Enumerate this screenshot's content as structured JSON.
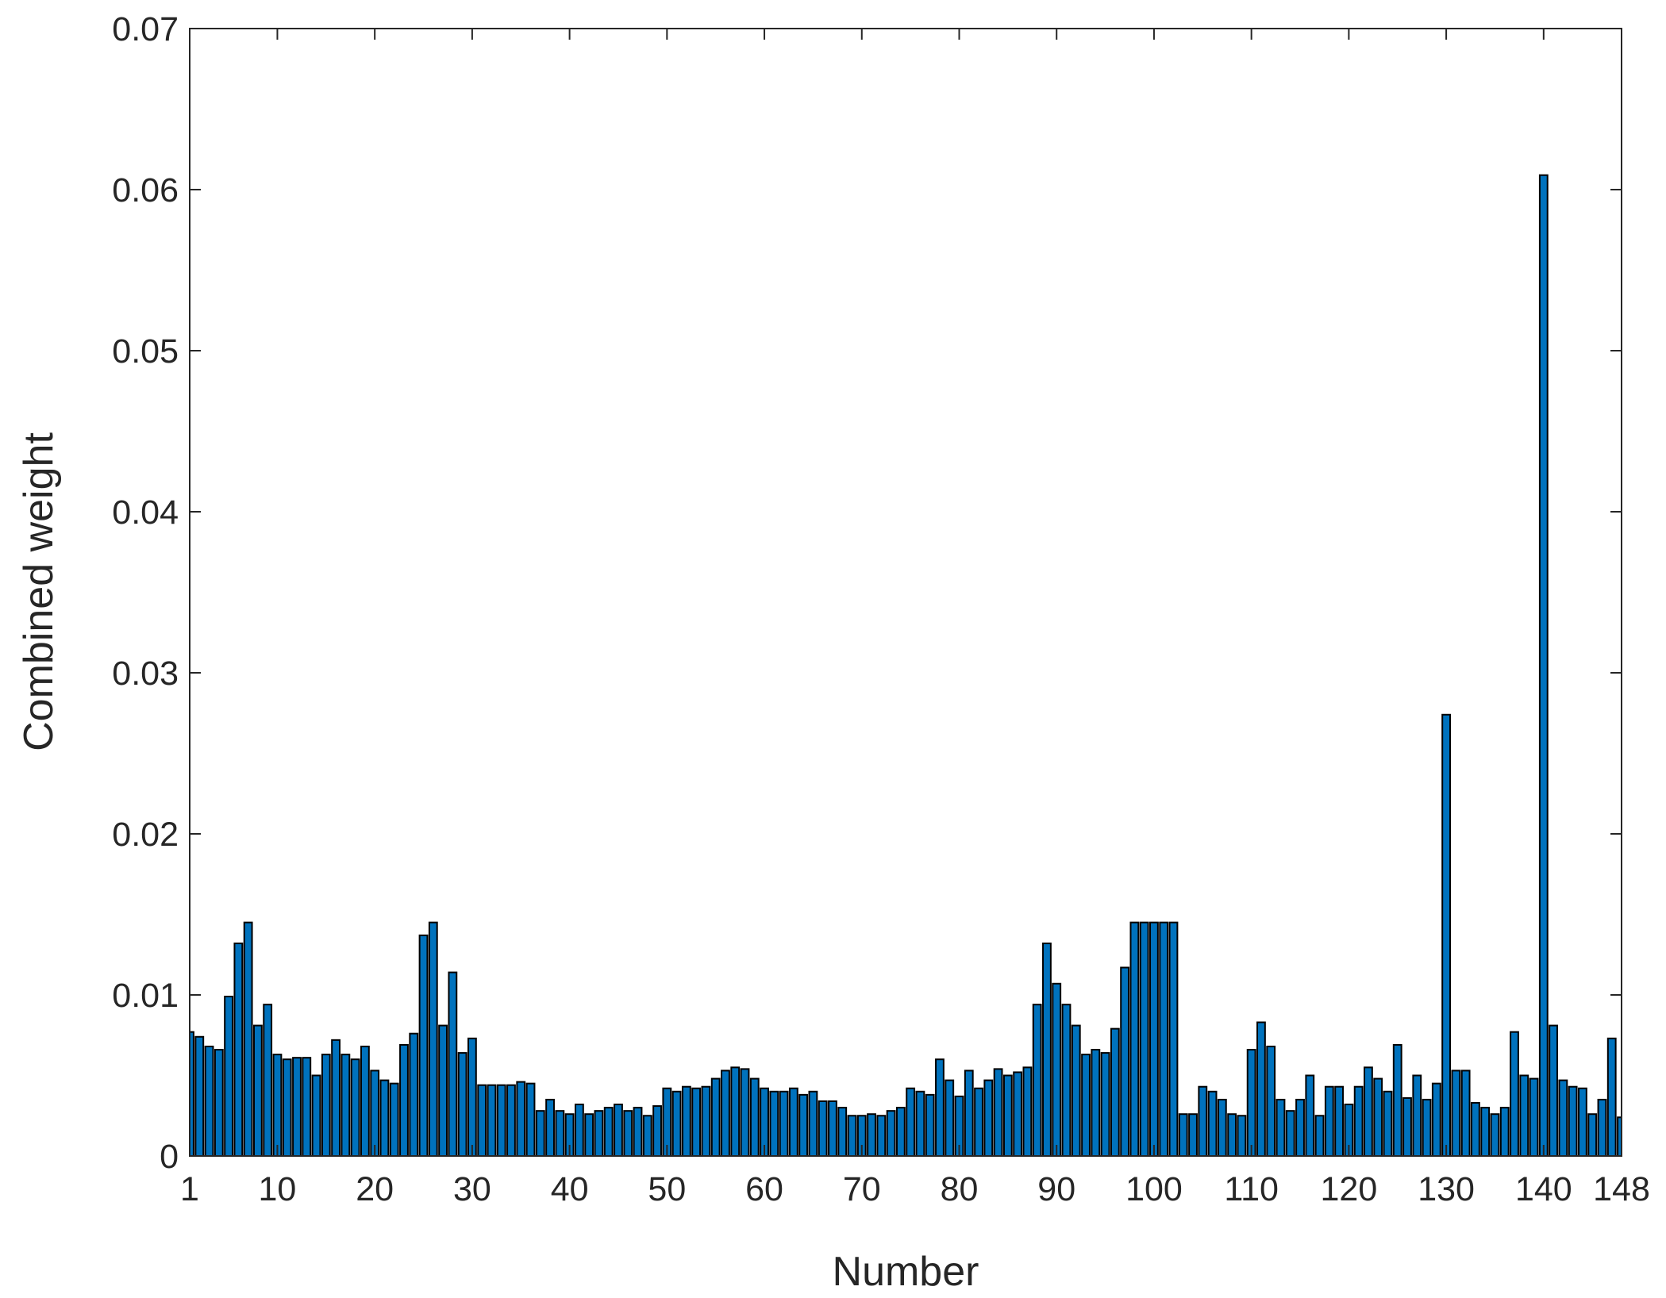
{
  "chart_data": {
    "type": "bar",
    "x_label": "Number",
    "y_label": "Combined weight",
    "x": [
      1,
      2,
      3,
      4,
      5,
      6,
      7,
      8,
      9,
      10,
      11,
      12,
      13,
      14,
      15,
      16,
      17,
      18,
      19,
      20,
      21,
      22,
      23,
      24,
      25,
      26,
      27,
      28,
      29,
      30,
      31,
      32,
      33,
      34,
      35,
      36,
      37,
      38,
      39,
      40,
      41,
      42,
      43,
      44,
      45,
      46,
      47,
      48,
      49,
      50,
      51,
      52,
      53,
      54,
      55,
      56,
      57,
      58,
      59,
      60,
      61,
      62,
      63,
      64,
      65,
      66,
      67,
      68,
      69,
      70,
      71,
      72,
      73,
      74,
      75,
      76,
      77,
      78,
      79,
      80,
      81,
      82,
      83,
      84,
      85,
      86,
      87,
      88,
      89,
      90,
      91,
      92,
      93,
      94,
      95,
      96,
      97,
      98,
      99,
      100,
      101,
      102,
      103,
      104,
      105,
      106,
      107,
      108,
      109,
      110,
      111,
      112,
      113,
      114,
      115,
      116,
      117,
      118,
      119,
      120,
      121,
      122,
      123,
      124,
      125,
      126,
      127,
      128,
      129,
      130,
      131,
      132,
      133,
      134,
      135,
      136,
      137,
      138,
      139,
      140,
      141,
      142,
      143,
      144,
      145,
      146,
      147,
      148
    ],
    "values": [
      0.0077,
      0.0074,
      0.0068,
      0.0066,
      0.0099,
      0.0132,
      0.0145,
      0.0081,
      0.0094,
      0.0063,
      0.006,
      0.0061,
      0.0061,
      0.005,
      0.0063,
      0.0072,
      0.0063,
      0.006,
      0.0068,
      0.0053,
      0.0047,
      0.0045,
      0.0069,
      0.0076,
      0.0137,
      0.0145,
      0.0081,
      0.0114,
      0.0064,
      0.0073,
      0.0044,
      0.0044,
      0.0044,
      0.0044,
      0.0046,
      0.0045,
      0.0028,
      0.0035,
      0.0028,
      0.0026,
      0.0032,
      0.0026,
      0.0028,
      0.003,
      0.0032,
      0.0028,
      0.003,
      0.0025,
      0.0031,
      0.0042,
      0.004,
      0.0043,
      0.0042,
      0.0043,
      0.0048,
      0.0053,
      0.0055,
      0.0054,
      0.0048,
      0.0042,
      0.004,
      0.004,
      0.0042,
      0.0038,
      0.004,
      0.0034,
      0.0034,
      0.003,
      0.0025,
      0.0025,
      0.0026,
      0.0025,
      0.0028,
      0.003,
      0.0042,
      0.004,
      0.0038,
      0.006,
      0.0047,
      0.0037,
      0.0053,
      0.0042,
      0.0047,
      0.0054,
      0.005,
      0.0052,
      0.0055,
      0.0094,
      0.0132,
      0.0107,
      0.0094,
      0.0081,
      0.0063,
      0.0066,
      0.0064,
      0.0079,
      0.0117,
      0.0145,
      0.0145,
      0.0145,
      0.0145,
      0.0145,
      0.0026,
      0.0026,
      0.0043,
      0.004,
      0.0035,
      0.0026,
      0.0025,
      0.0066,
      0.0083,
      0.0068,
      0.0035,
      0.0028,
      0.0035,
      0.005,
      0.0025,
      0.0043,
      0.0043,
      0.0032,
      0.0043,
      0.0055,
      0.0048,
      0.004,
      0.0069,
      0.0036,
      0.005,
      0.0035,
      0.0045,
      0.0274,
      0.0053,
      0.0053,
      0.0033,
      0.003,
      0.0026,
      0.003,
      0.0077,
      0.005,
      0.0048,
      0.0609,
      0.0081,
      0.0047,
      0.0043,
      0.0042,
      0.0026,
      0.0035,
      0.0073,
      0.0024
    ],
    "color": "#0072bd",
    "xlim": [
      1,
      148
    ],
    "xticks": [
      1,
      10,
      20,
      30,
      40,
      50,
      60,
      70,
      80,
      90,
      100,
      110,
      120,
      130,
      140,
      148
    ],
    "ylim": [
      0,
      0.07
    ],
    "yticks": [
      0,
      0.01,
      0.02,
      0.03,
      0.04,
      0.05,
      0.06,
      0.07
    ]
  }
}
